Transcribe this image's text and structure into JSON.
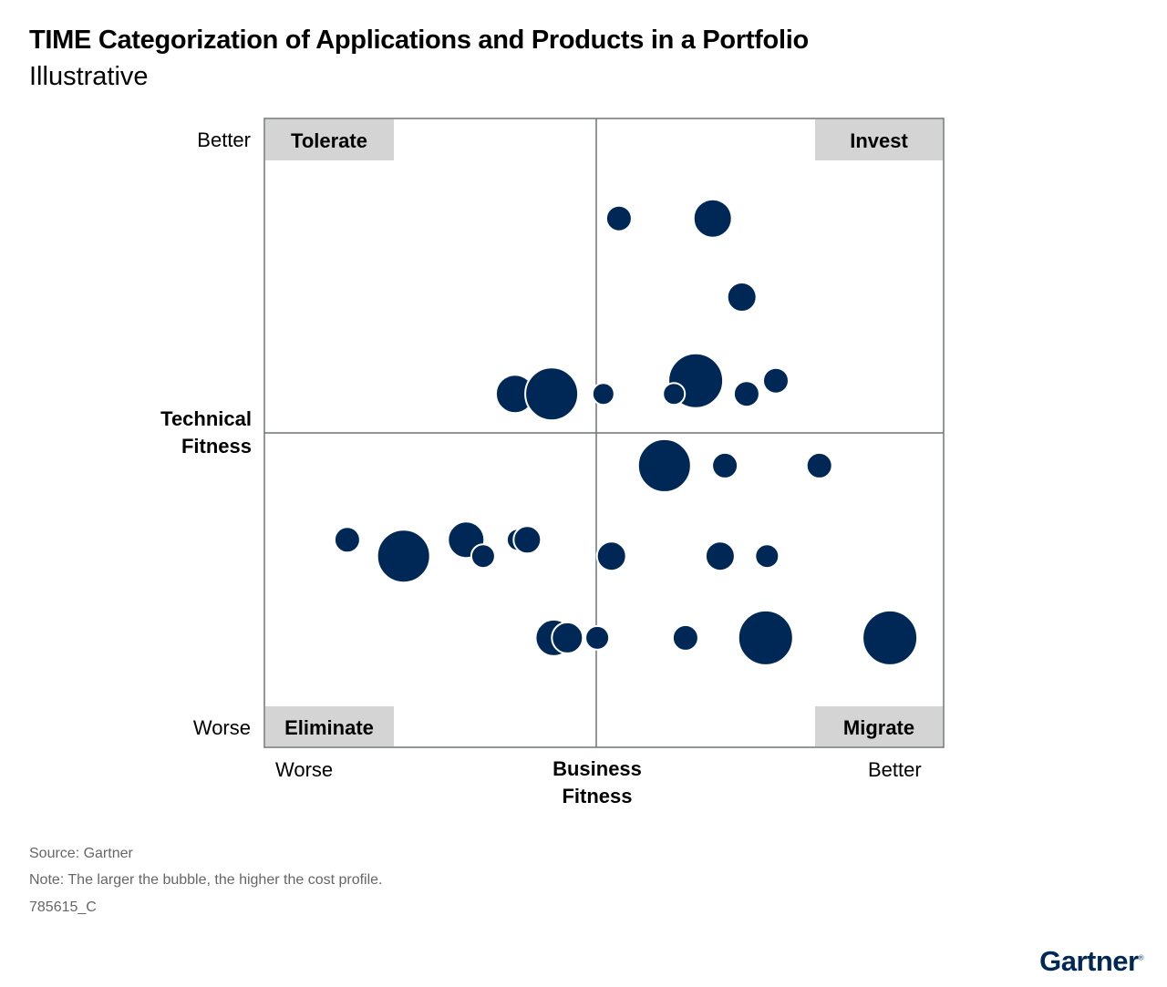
{
  "title": "TIME Categorization of Applications and Products in a Portfolio",
  "subtitle": "Illustrative",
  "footer": {
    "source": "Source: Gartner",
    "note": "Note: The larger the bubble, the higher the cost profile.",
    "id": "785615_C"
  },
  "logo": "Gartner",
  "colors": {
    "bubble": "#002856",
    "quadrant_label_bg": "#d4d4d4",
    "axis": "#6e7475"
  },
  "chart_data": {
    "type": "scatter",
    "subtype": "bubble",
    "xlabel": "Business Fitness",
    "ylabel": "Technical Fitness",
    "x_tick_labels": [
      "Worse",
      "Better"
    ],
    "y_tick_labels": [
      "Worse",
      "Better"
    ],
    "xlim": [
      0,
      100
    ],
    "ylim": [
      0,
      100
    ],
    "grid": false,
    "quadrants": [
      {
        "label": "Tolerate",
        "position": "top-left"
      },
      {
        "label": "Invest",
        "position": "top-right"
      },
      {
        "label": "Eliminate",
        "position": "bottom-left"
      },
      {
        "label": "Migrate",
        "position": "bottom-right"
      }
    ],
    "size_meaning": "cost profile (relative)",
    "points": [
      {
        "x": 52.2,
        "y": 84.1,
        "cost": 1.0
      },
      {
        "x": 66.0,
        "y": 84.1,
        "cost": 2.75
      },
      {
        "x": 70.3,
        "y": 71.6,
        "cost": 1.5
      },
      {
        "x": 36.9,
        "y": 56.2,
        "cost": 2.75
      },
      {
        "x": 42.3,
        "y": 56.2,
        "cost": 4.75
      },
      {
        "x": 49.9,
        "y": 56.2,
        "cost": 0.5
      },
      {
        "x": 63.5,
        "y": 58.3,
        "cost": 5.0
      },
      {
        "x": 60.3,
        "y": 56.2,
        "cost": 0.5
      },
      {
        "x": 71.0,
        "y": 56.2,
        "cost": 1.0
      },
      {
        "x": 75.3,
        "y": 58.3,
        "cost": 1.0
      },
      {
        "x": 58.9,
        "y": 44.8,
        "cost": 4.75
      },
      {
        "x": 67.8,
        "y": 44.8,
        "cost": 1.0
      },
      {
        "x": 81.7,
        "y": 44.8,
        "cost": 1.0
      },
      {
        "x": 12.2,
        "y": 33.0,
        "cost": 1.0
      },
      {
        "x": 20.5,
        "y": 30.4,
        "cost": 4.75
      },
      {
        "x": 29.7,
        "y": 33.0,
        "cost": 2.5
      },
      {
        "x": 32.2,
        "y": 30.4,
        "cost": 0.75
      },
      {
        "x": 37.3,
        "y": 33.0,
        "cost": 0.5
      },
      {
        "x": 38.7,
        "y": 33.0,
        "cost": 1.25
      },
      {
        "x": 51.1,
        "y": 30.4,
        "cost": 1.5
      },
      {
        "x": 67.1,
        "y": 30.4,
        "cost": 1.5
      },
      {
        "x": 74.0,
        "y": 30.4,
        "cost": 0.75
      },
      {
        "x": 42.6,
        "y": 17.4,
        "cost": 2.5
      },
      {
        "x": 44.6,
        "y": 17.4,
        "cost": 1.75
      },
      {
        "x": 49.0,
        "y": 17.4,
        "cost": 0.75
      },
      {
        "x": 62.0,
        "y": 17.4,
        "cost": 1.0
      },
      {
        "x": 73.8,
        "y": 17.4,
        "cost": 5.0
      },
      {
        "x": 92.1,
        "y": 17.4,
        "cost": 5.0
      }
    ]
  }
}
